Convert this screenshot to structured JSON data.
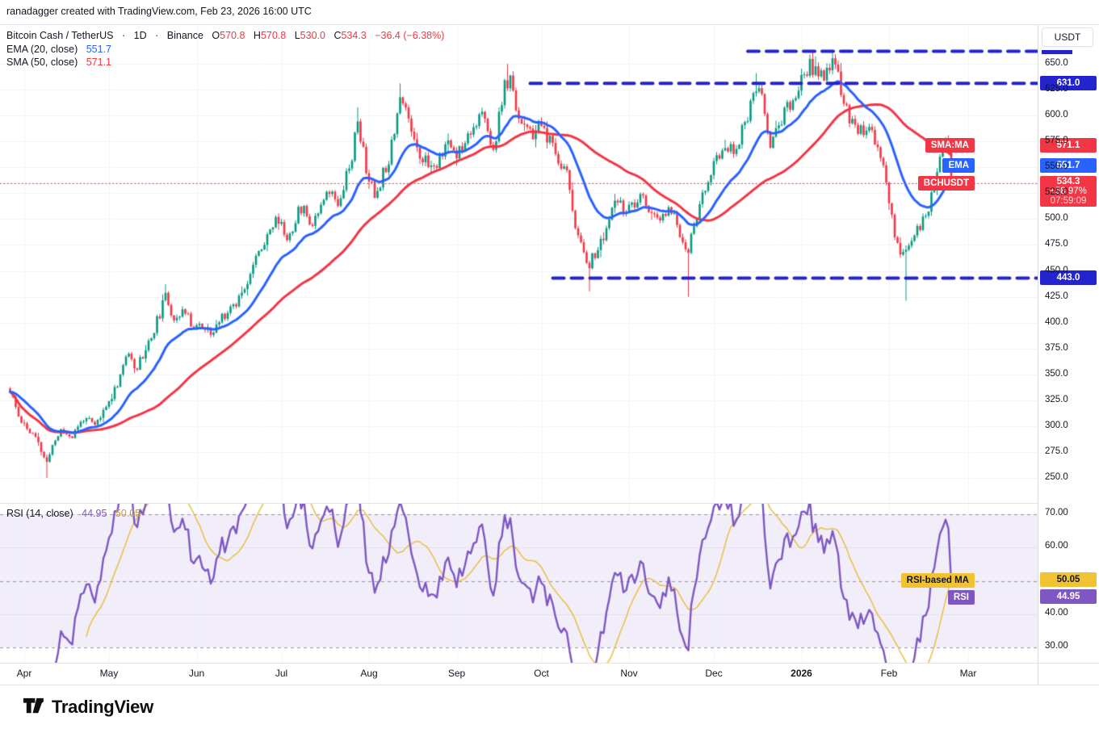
{
  "attribution": {
    "text": "ranadagger created with TradingView.com, Feb 23, 2026 16:00 UTC"
  },
  "header": {
    "symbol": "Bitcoin Cash / TetherUS",
    "separator": "·",
    "interval": "1D",
    "exchange": "Binance",
    "o_label": "O",
    "o": "570.8",
    "h_label": "H",
    "h": "570.8",
    "l_label": "L",
    "l": "530.0",
    "c_label": "C",
    "c": "534.3",
    "change": "−36.4 (−6.38%)"
  },
  "indicator_rows": {
    "ema": {
      "label": "EMA (20, close)",
      "value": "551.7"
    },
    "sma": {
      "label": "SMA (50, close)",
      "value": "571.1"
    }
  },
  "rsi_row": {
    "label": "RSI (14, close)",
    "value": "44.95",
    "ma_value": "50.05"
  },
  "price_scale": {
    "currency": "USDT",
    "ticks": [
      650,
      625,
      600,
      575,
      550,
      525,
      500,
      475,
      450,
      425,
      400,
      375,
      350,
      325,
      300,
      275,
      250
    ]
  },
  "rsi_scale": {
    "ticks": [
      70,
      60,
      40,
      30
    ]
  },
  "axis_badges": {
    "sma": {
      "tag": "SMA:MA",
      "value": "571.1",
      "price": 571.1
    },
    "ema": {
      "tag": "EMA",
      "value": "551.7",
      "price": 551.7
    },
    "symbol": {
      "tag": "BCHUSDT",
      "value": "534.3",
      "pct": "+58.97%",
      "countdown": "07:59:09",
      "price": 534.3
    },
    "resistance": {
      "value": "631.0",
      "price": 631.0
    },
    "support": {
      "value": "443.0",
      "price": 443.0
    },
    "rsi_ma": {
      "tag": "RSI-based MA",
      "value": "50.05",
      "level": 50.05
    },
    "rsi": {
      "tag": "RSI",
      "value": "44.95",
      "level": 44.95
    }
  },
  "time_axis": {
    "months": [
      {
        "label": "Apr",
        "day": 5
      },
      {
        "label": "May",
        "day": 35
      },
      {
        "label": "Jun",
        "day": 66
      },
      {
        "label": "Jul",
        "day": 96
      },
      {
        "label": "Aug",
        "day": 127
      },
      {
        "label": "Sep",
        "day": 158
      },
      {
        "label": "Oct",
        "day": 188
      },
      {
        "label": "Nov",
        "day": 219
      },
      {
        "label": "Dec",
        "day": 249
      },
      {
        "label": "2026",
        "day": 280,
        "bold": true
      },
      {
        "label": "Feb",
        "day": 311
      },
      {
        "label": "Mar",
        "day": 339
      }
    ]
  },
  "footer": {
    "brand": "TradingView"
  },
  "colors": {
    "up": "#089981",
    "down": "#f23645",
    "ema": "#2962ff",
    "sma": "#f23645",
    "level_line": "#2323cc",
    "level_badge": "#2424cf",
    "last_price": "#f23645",
    "rsi": "#7e57c2",
    "rsi_ma": "#e9bf45",
    "rsi_band_fill": "rgba(126,87,194,0.10)",
    "band_dash": "#787b86",
    "grid": "#f0f3fa",
    "header_value_up": "#2962ff",
    "header_value_down": "#f23645"
  },
  "chart_data": {
    "type": "candlestick",
    "symbol": "BCHUSDT",
    "name": "Bitcoin Cash / TetherUS",
    "exchange": "Binance",
    "interval": "1D",
    "last_candle": {
      "open": 570.8,
      "high": 570.8,
      "low": 530.0,
      "close": 534.3
    },
    "change": -36.4,
    "change_pct": -6.38,
    "countdown": "07:59:09",
    "price_axis_range_visible": [
      223,
      684
    ],
    "rsi_axis_range_visible": [
      25,
      73
    ],
    "indicators": [
      {
        "name": "EMA",
        "length": 20,
        "source": "close",
        "last": 551.7
      },
      {
        "name": "SMA",
        "length": 50,
        "source": "close",
        "last": 571.1
      },
      {
        "name": "RSI",
        "length": 14,
        "source": "close",
        "last": 44.95,
        "ma_last": 50.05
      }
    ],
    "levels": {
      "resistance_upper": 662,
      "resistance": 631.0,
      "support": 443.0,
      "last_price": 534.3,
      "rsi_bands": [
        70,
        50,
        30
      ]
    },
    "level_start_days": {
      "resistance_upper": 261,
      "resistance": 184,
      "support": 192
    },
    "days_total": 334,
    "trend_waypoints": [
      [
        0,
        333
      ],
      [
        3,
        310
      ],
      [
        6,
        298
      ],
      [
        9,
        288
      ],
      [
        13,
        264
      ],
      [
        15,
        282
      ],
      [
        18,
        296
      ],
      [
        22,
        290
      ],
      [
        26,
        308
      ],
      [
        30,
        300
      ],
      [
        34,
        318
      ],
      [
        38,
        342
      ],
      [
        41,
        368
      ],
      [
        45,
        358
      ],
      [
        50,
        386
      ],
      [
        55,
        424
      ],
      [
        58,
        405
      ],
      [
        61,
        412
      ],
      [
        64,
        400
      ],
      [
        68,
        396
      ],
      [
        71,
        386
      ],
      [
        75,
        406
      ],
      [
        80,
        420
      ],
      [
        85,
        448
      ],
      [
        91,
        487
      ],
      [
        95,
        500
      ],
      [
        98,
        481
      ],
      [
        103,
        512
      ],
      [
        107,
        496
      ],
      [
        112,
        530
      ],
      [
        116,
        517
      ],
      [
        121,
        562
      ],
      [
        123,
        596
      ],
      [
        126,
        548
      ],
      [
        129,
        522
      ],
      [
        134,
        560
      ],
      [
        138,
        618
      ],
      [
        141,
        598
      ],
      [
        145,
        562
      ],
      [
        150,
        548
      ],
      [
        154,
        574
      ],
      [
        158,
        563
      ],
      [
        163,
        588
      ],
      [
        167,
        600
      ],
      [
        171,
        566
      ],
      [
        175,
        628
      ],
      [
        177,
        632
      ],
      [
        180,
        600
      ],
      [
        184,
        580
      ],
      [
        188,
        590
      ],
      [
        193,
        562
      ],
      [
        197,
        545
      ],
      [
        201,
        480
      ],
      [
        205,
        458
      ],
      [
        209,
        475
      ],
      [
        214,
        515
      ],
      [
        219,
        508
      ],
      [
        224,
        520
      ],
      [
        229,
        496
      ],
      [
        234,
        510
      ],
      [
        238,
        478
      ],
      [
        240,
        470
      ],
      [
        243,
        505
      ],
      [
        247,
        535
      ],
      [
        252,
        572
      ],
      [
        256,
        565
      ],
      [
        260,
        592
      ],
      [
        264,
        625
      ],
      [
        266,
        616
      ],
      [
        269,
        576
      ],
      [
        273,
        596
      ],
      [
        278,
        620
      ],
      [
        283,
        648
      ],
      [
        286,
        642
      ],
      [
        289,
        638
      ],
      [
        291,
        655
      ],
      [
        294,
        625
      ],
      [
        298,
        592
      ],
      [
        303,
        585
      ],
      [
        307,
        576
      ],
      [
        311,
        518
      ],
      [
        314,
        472
      ],
      [
        317,
        466
      ],
      [
        320,
        488
      ],
      [
        324,
        500
      ],
      [
        328,
        548
      ],
      [
        331,
        570
      ],
      [
        332,
        571
      ],
      [
        333,
        534.3
      ]
    ],
    "wick_extremes": [
      {
        "day": 13,
        "low": 250
      },
      {
        "day": 55,
        "high": 437
      },
      {
        "day": 123,
        "high": 608
      },
      {
        "day": 138,
        "high": 631
      },
      {
        "day": 176,
        "high": 650
      },
      {
        "day": 205,
        "low": 430
      },
      {
        "day": 240,
        "low": 425
      },
      {
        "day": 264,
        "high": 641
      },
      {
        "day": 284,
        "high": 661
      },
      {
        "day": 291,
        "high": 663
      },
      {
        "day": 317,
        "low": 421
      },
      {
        "day": 332,
        "high": 581
      }
    ],
    "seed": 11
  }
}
